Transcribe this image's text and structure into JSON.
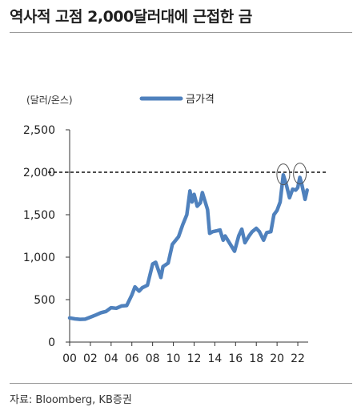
{
  "title": "역사적 고점 2,000달러대에 근접한 금",
  "source": "자료: Bloomberg, KB증권",
  "chart_data": {
    "type": "line",
    "ylabel": "(달러/온스)",
    "legend": {
      "label": "금가격",
      "placement": "top"
    },
    "series": [
      {
        "name": "금가격",
        "color": "#4f81bd",
        "points": [
          [
            2000.0,
            285
          ],
          [
            2000.5,
            274
          ],
          [
            2001.0,
            268
          ],
          [
            2001.5,
            270
          ],
          [
            2002.0,
            293
          ],
          [
            2002.5,
            318
          ],
          [
            2003.0,
            345
          ],
          [
            2003.5,
            360
          ],
          [
            2004.0,
            405
          ],
          [
            2004.5,
            398
          ],
          [
            2005.0,
            425
          ],
          [
            2005.5,
            430
          ],
          [
            2006.0,
            555
          ],
          [
            2006.3,
            650
          ],
          [
            2006.7,
            600
          ],
          [
            2007.0,
            640
          ],
          [
            2007.5,
            670
          ],
          [
            2008.0,
            920
          ],
          [
            2008.3,
            940
          ],
          [
            2008.8,
            760
          ],
          [
            2009.0,
            890
          ],
          [
            2009.5,
            930
          ],
          [
            2009.9,
            1150
          ],
          [
            2010.5,
            1240
          ],
          [
            2010.9,
            1380
          ],
          [
            2011.3,
            1500
          ],
          [
            2011.6,
            1780
          ],
          [
            2011.8,
            1650
          ],
          [
            2012.0,
            1740
          ],
          [
            2012.3,
            1600
          ],
          [
            2012.6,
            1640
          ],
          [
            2012.8,
            1760
          ],
          [
            2013.0,
            1680
          ],
          [
            2013.3,
            1560
          ],
          [
            2013.5,
            1280
          ],
          [
            2013.8,
            1300
          ],
          [
            2014.2,
            1310
          ],
          [
            2014.5,
            1320
          ],
          [
            2014.8,
            1200
          ],
          [
            2015.0,
            1250
          ],
          [
            2015.5,
            1150
          ],
          [
            2015.9,
            1070
          ],
          [
            2016.3,
            1250
          ],
          [
            2016.6,
            1330
          ],
          [
            2016.9,
            1170
          ],
          [
            2017.3,
            1250
          ],
          [
            2017.6,
            1300
          ],
          [
            2018.0,
            1340
          ],
          [
            2018.3,
            1300
          ],
          [
            2018.7,
            1200
          ],
          [
            2019.0,
            1290
          ],
          [
            2019.4,
            1300
          ],
          [
            2019.7,
            1500
          ],
          [
            2020.0,
            1550
          ],
          [
            2020.3,
            1650
          ],
          [
            2020.6,
            1970
          ],
          [
            2020.9,
            1850
          ],
          [
            2021.2,
            1700
          ],
          [
            2021.5,
            1800
          ],
          [
            2021.8,
            1790
          ],
          [
            2022.0,
            1820
          ],
          [
            2022.2,
            1940
          ],
          [
            2022.4,
            1850
          ],
          [
            2022.7,
            1680
          ],
          [
            2022.9,
            1790
          ]
        ]
      }
    ],
    "reference_line": {
      "value": 2000,
      "style": "dashed"
    },
    "highlight_circles": [
      {
        "x": 2020.6,
        "y": 1975
      },
      {
        "x": 2022.2,
        "y": 1985
      }
    ],
    "xaxis": {
      "range": [
        2000,
        2023
      ],
      "ticks": [
        {
          "value": 2000,
          "label": "00"
        },
        {
          "value": 2002,
          "label": "02"
        },
        {
          "value": 2004,
          "label": "04"
        },
        {
          "value": 2006,
          "label": "06"
        },
        {
          "value": 2008,
          "label": "08"
        },
        {
          "value": 2010,
          "label": "10"
        },
        {
          "value": 2012,
          "label": "12"
        },
        {
          "value": 2014,
          "label": "14"
        },
        {
          "value": 2016,
          "label": "16"
        },
        {
          "value": 2018,
          "label": "18"
        },
        {
          "value": 2020,
          "label": "20"
        },
        {
          "value": 2022,
          "label": "22"
        }
      ]
    },
    "yaxis": {
      "range": [
        0,
        2500
      ],
      "ticks": [
        {
          "value": 0,
          "label": "0"
        },
        {
          "value": 500,
          "label": "500"
        },
        {
          "value": 1000,
          "label": "1,000"
        },
        {
          "value": 1500,
          "label": "1,500"
        },
        {
          "value": 2000,
          "label": "2,000"
        },
        {
          "value": 2500,
          "label": "2,500"
        }
      ]
    },
    "grid": false
  }
}
